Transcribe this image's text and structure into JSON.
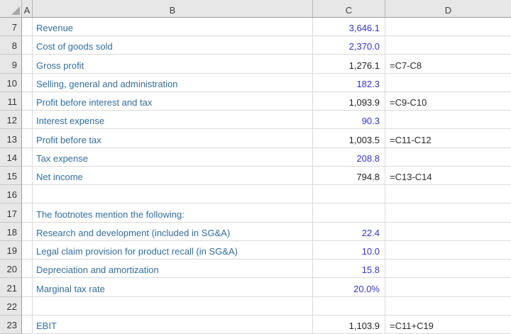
{
  "sheet": {
    "col_headers": [
      "A",
      "B",
      "C",
      "D"
    ],
    "rows": [
      {
        "n": "7",
        "label": "Revenue",
        "value": "3,646.1",
        "vtype": "input",
        "formula": ""
      },
      {
        "n": "8",
        "label": "Cost of goods sold",
        "value": "2,370.0",
        "vtype": "input",
        "formula": ""
      },
      {
        "n": "9",
        "label": "Gross profit",
        "value": "1,276.1",
        "vtype": "calc",
        "formula": "=C7-C8"
      },
      {
        "n": "10",
        "label": "Selling, general and administration",
        "value": "182.3",
        "vtype": "input",
        "formula": ""
      },
      {
        "n": "11",
        "label": "Profit before interest and tax",
        "value": "1,093.9",
        "vtype": "calc",
        "formula": "=C9-C10"
      },
      {
        "n": "12",
        "label": "Interest expense",
        "value": "90.3",
        "vtype": "input",
        "formula": ""
      },
      {
        "n": "13",
        "label": "Profit before tax",
        "value": "1,003.5",
        "vtype": "calc",
        "formula": "=C11-C12"
      },
      {
        "n": "14",
        "label": "Tax expense",
        "value": "208.8",
        "vtype": "input",
        "formula": ""
      },
      {
        "n": "15",
        "label": "Net income",
        "value": "794.8",
        "vtype": "calc",
        "formula": "=C13-C14"
      },
      {
        "n": "16",
        "label": "",
        "value": "",
        "vtype": "",
        "formula": ""
      },
      {
        "n": "17",
        "label": "The footnotes mention the following:",
        "value": "",
        "vtype": "",
        "formula": ""
      },
      {
        "n": "18",
        "label": "Research and development (included in SG&A)",
        "value": "22.4",
        "vtype": "input",
        "formula": ""
      },
      {
        "n": "19",
        "label": "Legal claim provision for product recall (in SG&A)",
        "value": "10.0",
        "vtype": "input",
        "formula": ""
      },
      {
        "n": "20",
        "label": "Depreciation and amortization",
        "value": "15.8",
        "vtype": "input",
        "formula": ""
      },
      {
        "n": "21",
        "label": "Marginal tax rate",
        "value": "20.0%",
        "vtype": "input",
        "formula": ""
      },
      {
        "n": "22",
        "label": "",
        "value": "",
        "vtype": "",
        "formula": ""
      },
      {
        "n": "23",
        "label": "EBIT",
        "value": "1,103.9",
        "vtype": "calc",
        "formula": "=C11+C19"
      }
    ]
  },
  "colors": {
    "label_blue": "#336e9c",
    "input_blue": "#3333cc",
    "calc_black": "#1f1f1f",
    "formula_color": "#2b2b2b",
    "header_bg": "#e7e7e7",
    "header_text": "#3f3f3f",
    "header_sep": "#b5b5b5",
    "header_line": "#9c9c9c",
    "rowhdr_line": "#9c9c9c",
    "rowhdr_sep": "#c6c6c6",
    "grid": "#d9d9d9",
    "triangle": "#a8a8a8"
  }
}
